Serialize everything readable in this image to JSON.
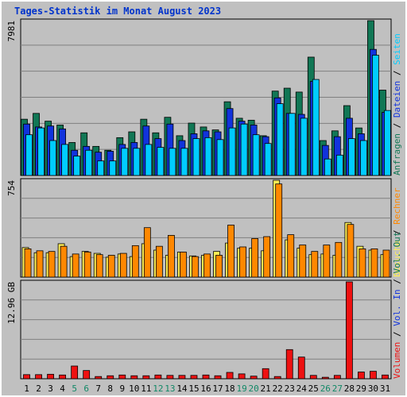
{
  "title": "Tages-Statistik im Monat August 2023",
  "colors": {
    "background": "#c0c0c0",
    "title": "#0033cc",
    "anfragen": "#117755",
    "dateien": "#1133dd",
    "seiten": "#00ccff",
    "besuche": "#ffee55",
    "rechner": "#ff8800",
    "volumen": "#ee1111",
    "weekend_label": "#118866",
    "weekday_label": "#000000"
  },
  "chart_data": [
    {
      "type": "bar",
      "panel": "requests",
      "max_label": "7981",
      "ylim": [
        0,
        7981
      ],
      "side_legend": [
        {
          "text": "Anfragen",
          "color": "#117755"
        },
        {
          "text": "Dateien",
          "color": "#1133dd"
        },
        {
          "text": "Seiten",
          "color": "#00ccff"
        }
      ],
      "categories": [
        "1",
        "2",
        "3",
        "4",
        "5",
        "6",
        "7",
        "8",
        "9",
        "10",
        "11",
        "12",
        "13",
        "14",
        "15",
        "16",
        "17",
        "18",
        "19",
        "20",
        "21",
        "22",
        "23",
        "24",
        "25",
        "26",
        "27",
        "28",
        "29",
        "30",
        "31"
      ],
      "series": [
        {
          "name": "Anfragen",
          "values": [
            2900,
            3200,
            2800,
            2600,
            1700,
            2200,
            1500,
            1300,
            1950,
            2250,
            2900,
            2200,
            3000,
            2050,
            2700,
            2500,
            2350,
            3800,
            2950,
            2850,
            2050,
            4350,
            4500,
            4300,
            6100,
            1800,
            2300,
            3600,
            2450,
            7981,
            4400
          ]
        },
        {
          "name": "Dateien",
          "values": [
            2650,
            2500,
            2550,
            2400,
            1300,
            1500,
            1200,
            1250,
            1600,
            1700,
            2550,
            1900,
            2650,
            1800,
            2150,
            2300,
            2250,
            3450,
            2800,
            2600,
            2000,
            4000,
            3200,
            3150,
            4850,
            1550,
            2000,
            2950,
            2150,
            6500,
            3250
          ]
        },
        {
          "name": "Seiten",
          "values": [
            2100,
            2450,
            1800,
            1600,
            1000,
            1300,
            750,
            750,
            1400,
            1400,
            1600,
            1450,
            1400,
            1400,
            1900,
            1950,
            1850,
            2450,
            2650,
            2100,
            1650,
            3700,
            3200,
            2950,
            4950,
            850,
            1050,
            1900,
            1800,
            6200,
            3350
          ]
        }
      ]
    },
    {
      "type": "bar",
      "panel": "visits",
      "max_label": "754",
      "ylim": [
        0,
        754
      ],
      "side_legend": [
        {
          "text": "Besuche",
          "color": "#ffee55"
        },
        {
          "text": "Rechner",
          "color": "#ff8800"
        }
      ],
      "categories": [
        "1",
        "2",
        "3",
        "4",
        "5",
        "6",
        "7",
        "8",
        "9",
        "10",
        "11",
        "12",
        "13",
        "14",
        "15",
        "16",
        "17",
        "18",
        "19",
        "20",
        "21",
        "22",
        "23",
        "24",
        "25",
        "26",
        "27",
        "28",
        "29",
        "30",
        "31"
      ],
      "series": [
        {
          "name": "Besuche",
          "values": [
            230,
            190,
            190,
            260,
            160,
            200,
            185,
            155,
            180,
            160,
            260,
            210,
            170,
            195,
            165,
            170,
            200,
            265,
            225,
            225,
            205,
            754,
            290,
            225,
            175,
            180,
            170,
            425,
            240,
            210,
            175
          ]
        },
        {
          "name": "Rechner",
          "values": [
            220,
            205,
            200,
            240,
            180,
            195,
            175,
            170,
            185,
            245,
            385,
            240,
            325,
            195,
            160,
            180,
            170,
            405,
            235,
            300,
            315,
            725,
            330,
            250,
            200,
            250,
            270,
            410,
            220,
            220,
            210
          ]
        }
      ]
    },
    {
      "type": "bar",
      "panel": "volume",
      "max_label": "12.96 GB",
      "ylim": [
        0,
        12.96
      ],
      "side_legend": [
        {
          "text": "Volumen",
          "color": "#ee1111"
        },
        {
          "text": "Vol. In",
          "color": "#1133dd"
        },
        {
          "text": "Vol. Out",
          "color": "#117755"
        }
      ],
      "categories": [
        "1",
        "2",
        "3",
        "4",
        "5",
        "6",
        "7",
        "8",
        "9",
        "10",
        "11",
        "12",
        "13",
        "14",
        "15",
        "16",
        "17",
        "18",
        "19",
        "20",
        "21",
        "22",
        "23",
        "24",
        "25",
        "26",
        "27",
        "28",
        "29",
        "30",
        "31"
      ],
      "series": [
        {
          "name": "Volumen",
          "values": [
            0.55,
            0.55,
            0.6,
            0.5,
            1.7,
            1.1,
            0.3,
            0.4,
            0.5,
            0.4,
            0.4,
            0.5,
            0.45,
            0.45,
            0.45,
            0.5,
            0.4,
            0.85,
            0.65,
            0.35,
            1.35,
            0.3,
            3.9,
            2.9,
            0.45,
            0.2,
            0.45,
            12.96,
            0.9,
            1.0,
            0.5
          ]
        }
      ]
    }
  ],
  "weekend_days": [
    "5",
    "6",
    "12",
    "13",
    "19",
    "20",
    "26",
    "27"
  ]
}
